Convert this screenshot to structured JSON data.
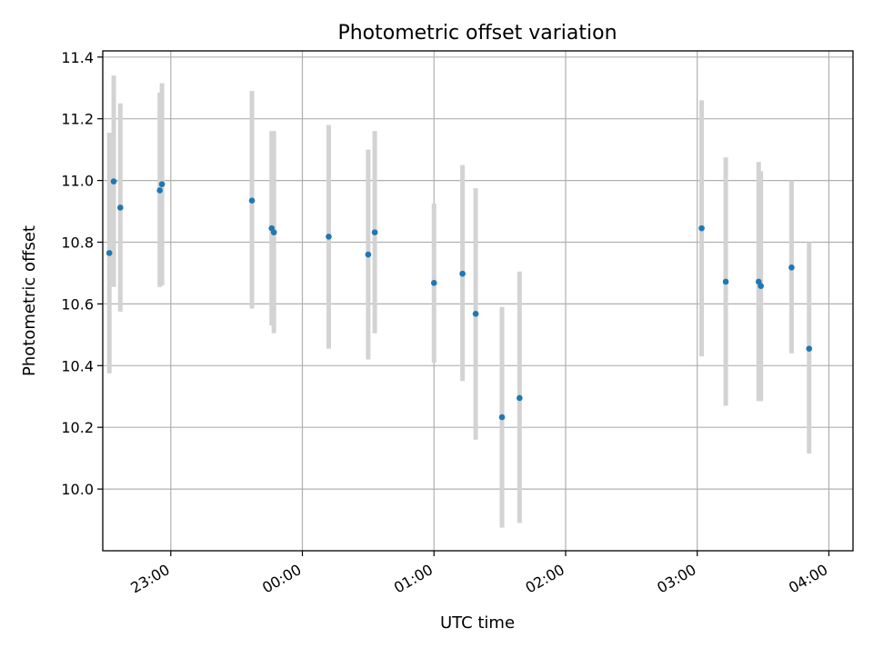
{
  "chart_data": {
    "type": "scatter",
    "title": "Photometric offset variation",
    "xlabel": "UTC time",
    "ylabel": "Photometric offset",
    "x_type": "time",
    "xlim": [
      "22:29",
      "04:11"
    ],
    "ylim": [
      9.8,
      11.42
    ],
    "x_ticks": [
      "23:00",
      "00:00",
      "01:00",
      "02:00",
      "03:00",
      "04:00"
    ],
    "y_ticks": [
      "10.0",
      "10.2",
      "10.4",
      "10.6",
      "10.8",
      "11.0",
      "11.2",
      "11.4"
    ],
    "grid": true,
    "colors": {
      "marker": "#1f77b4",
      "errorbar": "#d3d3d3",
      "grid": "#b0b0b0"
    },
    "series": [
      {
        "points": [
          {
            "x": "22:32",
            "y": 10.765,
            "ylow": 10.375,
            "yhigh": 11.155
          },
          {
            "x": "22:34",
            "y": 10.997,
            "ylow": 10.655,
            "yhigh": 11.34
          },
          {
            "x": "22:37",
            "y": 10.912,
            "ylow": 10.575,
            "yhigh": 11.25
          },
          {
            "x": "22:55",
            "y": 10.968,
            "ylow": 10.655,
            "yhigh": 11.285
          },
          {
            "x": "22:56",
            "y": 10.988,
            "ylow": 10.66,
            "yhigh": 11.315
          },
          {
            "x": "23:37",
            "y": 10.935,
            "ylow": 10.585,
            "yhigh": 11.29
          },
          {
            "x": "23:46",
            "y": 10.845,
            "ylow": 10.53,
            "yhigh": 11.16
          },
          {
            "x": "23:47",
            "y": 10.832,
            "ylow": 10.505,
            "yhigh": 11.16
          },
          {
            "x": "00:12",
            "y": 10.818,
            "ylow": 10.455,
            "yhigh": 11.18
          },
          {
            "x": "00:30",
            "y": 10.76,
            "ylow": 10.42,
            "yhigh": 11.1
          },
          {
            "x": "00:33",
            "y": 10.832,
            "ylow": 10.505,
            "yhigh": 11.16
          },
          {
            "x": "01:00",
            "y": 10.668,
            "ylow": 10.41,
            "yhigh": 10.925
          },
          {
            "x": "01:13",
            "y": 10.698,
            "ylow": 10.35,
            "yhigh": 11.05
          },
          {
            "x": "01:19",
            "y": 10.568,
            "ylow": 10.16,
            "yhigh": 10.975
          },
          {
            "x": "01:31",
            "y": 10.233,
            "ylow": 9.875,
            "yhigh": 10.59
          },
          {
            "x": "01:39",
            "y": 10.295,
            "ylow": 9.89,
            "yhigh": 10.705
          },
          {
            "x": "03:02",
            "y": 10.845,
            "ylow": 10.43,
            "yhigh": 11.26
          },
          {
            "x": "03:13",
            "y": 10.672,
            "ylow": 10.27,
            "yhigh": 11.075
          },
          {
            "x": "03:28",
            "y": 10.672,
            "ylow": 10.285,
            "yhigh": 11.06
          },
          {
            "x": "03:29",
            "y": 10.658,
            "ylow": 10.285,
            "yhigh": 11.03
          },
          {
            "x": "03:43",
            "y": 10.718,
            "ylow": 10.44,
            "yhigh": 11.0
          },
          {
            "x": "03:51",
            "y": 10.455,
            "ylow": 10.115,
            "yhigh": 10.8
          }
        ]
      }
    ]
  }
}
